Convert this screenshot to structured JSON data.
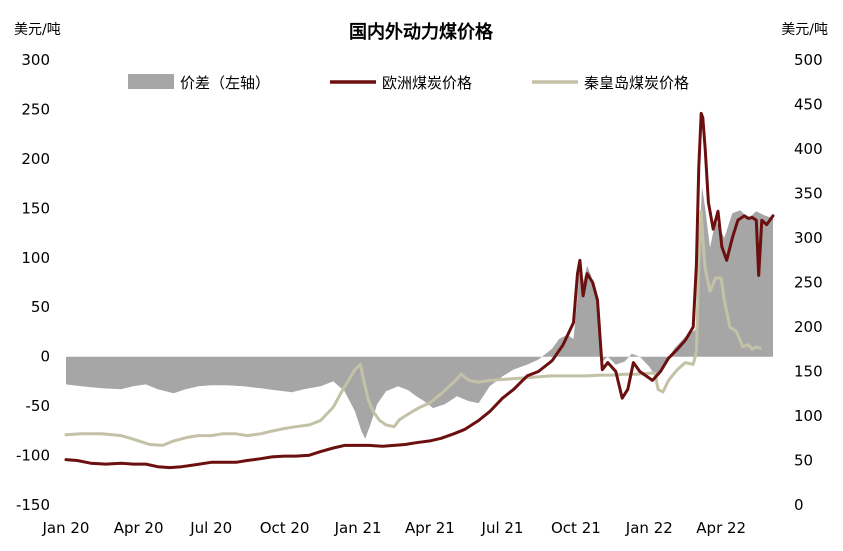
{
  "chart_data": {
    "type": "line",
    "title": "国内外动力煤价格",
    "left_unit": "美元/吨",
    "right_unit": "美元/吨",
    "left_axis": {
      "min": -150,
      "max": 300,
      "ticks": [
        300,
        250,
        200,
        150,
        100,
        50,
        0,
        -50,
        -100,
        -150
      ]
    },
    "right_axis": {
      "min": 0,
      "max": 500,
      "ticks": [
        500,
        450,
        400,
        350,
        300,
        250,
        200,
        150,
        100,
        50,
        0
      ]
    },
    "x_axis": {
      "start": "2020-01-01",
      "end": "2022-06-15",
      "ticks": [
        {
          "date": "2020-01-01",
          "label": "Jan 20"
        },
        {
          "date": "2020-04-01",
          "label": "Apr 20"
        },
        {
          "date": "2020-07-01",
          "label": "Jul 20"
        },
        {
          "date": "2020-10-01",
          "label": "Oct 20"
        },
        {
          "date": "2021-01-01",
          "label": "Jan 21"
        },
        {
          "date": "2021-04-01",
          "label": "Apr 21"
        },
        {
          "date": "2021-07-01",
          "label": "Jul 21"
        },
        {
          "date": "2021-10-01",
          "label": "Oct 21"
        },
        {
          "date": "2022-01-01",
          "label": "Jan 22"
        },
        {
          "date": "2022-04-01",
          "label": "Apr 22"
        }
      ]
    },
    "legend": {
      "placement": "top",
      "items": [
        {
          "label": "价差（左轴）",
          "kind": "area",
          "color": "#a6a6a6"
        },
        {
          "label": "欧洲煤炭价格",
          "kind": "line",
          "color": "#6b0f0f"
        },
        {
          "label": "秦皇岛煤炭价格",
          "kind": "line",
          "color": "#c3c1a6"
        }
      ]
    },
    "series": [
      {
        "name": "价差（左轴）",
        "axis": "left",
        "kind": "area",
        "color": "#a6a6a6",
        "points": [
          [
            "2020-01-01",
            -28
          ],
          [
            "2020-01-20",
            -30
          ],
          [
            "2020-02-15",
            -32
          ],
          [
            "2020-03-10",
            -33
          ],
          [
            "2020-03-25",
            -30
          ],
          [
            "2020-04-10",
            -28
          ],
          [
            "2020-04-25",
            -33
          ],
          [
            "2020-05-15",
            -37
          ],
          [
            "2020-05-30",
            -33
          ],
          [
            "2020-06-15",
            -30
          ],
          [
            "2020-07-01",
            -29
          ],
          [
            "2020-07-20",
            -29
          ],
          [
            "2020-08-10",
            -30
          ],
          [
            "2020-09-01",
            -32
          ],
          [
            "2020-09-20",
            -34
          ],
          [
            "2020-10-10",
            -36
          ],
          [
            "2020-10-25",
            -33
          ],
          [
            "2020-11-15",
            -30
          ],
          [
            "2020-12-01",
            -25
          ],
          [
            "2020-12-15",
            -35
          ],
          [
            "2020-12-28",
            -55
          ],
          [
            "2021-01-05",
            -75
          ],
          [
            "2021-01-10",
            -83
          ],
          [
            "2021-01-16",
            -70
          ],
          [
            "2021-01-25",
            -48
          ],
          [
            "2021-02-05",
            -35
          ],
          [
            "2021-02-20",
            -30
          ],
          [
            "2021-03-05",
            -34
          ],
          [
            "2021-03-15",
            -40
          ],
          [
            "2021-03-25",
            -45
          ],
          [
            "2021-04-05",
            -52
          ],
          [
            "2021-04-20",
            -48
          ],
          [
            "2021-05-05",
            -40
          ],
          [
            "2021-05-20",
            -45
          ],
          [
            "2021-06-01",
            -47
          ],
          [
            "2021-06-15",
            -30
          ],
          [
            "2021-07-01",
            -20
          ],
          [
            "2021-07-15",
            -13
          ],
          [
            "2021-08-01",
            -8
          ],
          [
            "2021-08-15",
            -3
          ],
          [
            "2021-09-01",
            8
          ],
          [
            "2021-09-10",
            18
          ],
          [
            "2021-09-20",
            22
          ],
          [
            "2021-09-28",
            18
          ],
          [
            "2021-10-03",
            60
          ],
          [
            "2021-10-06",
            97
          ],
          [
            "2021-10-10",
            75
          ],
          [
            "2021-10-15",
            92
          ],
          [
            "2021-10-20",
            82
          ],
          [
            "2021-10-28",
            50
          ],
          [
            "2021-11-03",
            -5
          ],
          [
            "2021-11-10",
            0
          ],
          [
            "2021-11-20",
            -8
          ],
          [
            "2021-12-01",
            -5
          ],
          [
            "2021-12-10",
            3
          ],
          [
            "2021-12-20",
            0
          ],
          [
            "2022-01-01",
            -10
          ],
          [
            "2022-01-10",
            -22
          ],
          [
            "2022-01-20",
            -8
          ],
          [
            "2022-02-01",
            8
          ],
          [
            "2022-02-15",
            20
          ],
          [
            "2022-03-01",
            28
          ],
          [
            "2022-03-05",
            120
          ],
          [
            "2022-03-08",
            172
          ],
          [
            "2022-03-12",
            150
          ],
          [
            "2022-03-18",
            110
          ],
          [
            "2022-03-25",
            138
          ],
          [
            "2022-04-05",
            120
          ],
          [
            "2022-04-15",
            145
          ],
          [
            "2022-04-25",
            148
          ],
          [
            "2022-05-05",
            140
          ],
          [
            "2022-05-15",
            147
          ],
          [
            "2022-05-25",
            143
          ],
          [
            "2022-06-05",
            140
          ]
        ]
      },
      {
        "name": "欧洲煤炭价格",
        "axis": "right",
        "kind": "line",
        "color": "#6b0f0f",
        "points": [
          [
            "2020-01-01",
            51
          ],
          [
            "2020-01-15",
            50
          ],
          [
            "2020-02-01",
            47
          ],
          [
            "2020-02-20",
            46
          ],
          [
            "2020-03-10",
            47
          ],
          [
            "2020-03-25",
            46
          ],
          [
            "2020-04-10",
            46
          ],
          [
            "2020-04-25",
            43
          ],
          [
            "2020-05-10",
            42
          ],
          [
            "2020-05-25",
            43
          ],
          [
            "2020-06-10",
            45
          ],
          [
            "2020-07-01",
            48
          ],
          [
            "2020-07-15",
            48
          ],
          [
            "2020-08-01",
            48
          ],
          [
            "2020-08-15",
            50
          ],
          [
            "2020-09-01",
            52
          ],
          [
            "2020-09-15",
            54
          ],
          [
            "2020-10-01",
            55
          ],
          [
            "2020-10-15",
            55
          ],
          [
            "2020-11-01",
            56
          ],
          [
            "2020-11-15",
            60
          ],
          [
            "2020-12-01",
            64
          ],
          [
            "2020-12-15",
            67
          ],
          [
            "2021-01-01",
            67
          ],
          [
            "2021-01-15",
            67
          ],
          [
            "2021-02-01",
            66
          ],
          [
            "2021-02-15",
            67
          ],
          [
            "2021-03-01",
            68
          ],
          [
            "2021-03-15",
            70
          ],
          [
            "2021-04-01",
            72
          ],
          [
            "2021-04-15",
            75
          ],
          [
            "2021-05-01",
            80
          ],
          [
            "2021-05-15",
            85
          ],
          [
            "2021-06-01",
            95
          ],
          [
            "2021-06-15",
            105
          ],
          [
            "2021-07-01",
            120
          ],
          [
            "2021-07-15",
            130
          ],
          [
            "2021-08-01",
            145
          ],
          [
            "2021-08-15",
            150
          ],
          [
            "2021-09-01",
            162
          ],
          [
            "2021-09-15",
            180
          ],
          [
            "2021-09-28",
            205
          ],
          [
            "2021-10-03",
            260
          ],
          [
            "2021-10-06",
            275
          ],
          [
            "2021-10-10",
            235
          ],
          [
            "2021-10-15",
            260
          ],
          [
            "2021-10-22",
            250
          ],
          [
            "2021-10-28",
            230
          ],
          [
            "2021-11-03",
            152
          ],
          [
            "2021-11-10",
            160
          ],
          [
            "2021-11-20",
            150
          ],
          [
            "2021-11-28",
            120
          ],
          [
            "2021-12-05",
            130
          ],
          [
            "2021-12-12",
            160
          ],
          [
            "2021-12-20",
            150
          ],
          [
            "2021-12-28",
            145
          ],
          [
            "2022-01-05",
            140
          ],
          [
            "2022-01-15",
            150
          ],
          [
            "2022-01-25",
            165
          ],
          [
            "2022-02-05",
            175
          ],
          [
            "2022-02-15",
            185
          ],
          [
            "2022-02-25",
            200
          ],
          [
            "2022-03-01",
            270
          ],
          [
            "2022-03-04",
            380
          ],
          [
            "2022-03-07",
            440
          ],
          [
            "2022-03-09",
            435
          ],
          [
            "2022-03-12",
            400
          ],
          [
            "2022-03-16",
            340
          ],
          [
            "2022-03-22",
            310
          ],
          [
            "2022-03-28",
            330
          ],
          [
            "2022-04-02",
            290
          ],
          [
            "2022-04-08",
            275
          ],
          [
            "2022-04-15",
            300
          ],
          [
            "2022-04-22",
            320
          ],
          [
            "2022-04-30",
            325
          ],
          [
            "2022-05-05",
            322
          ],
          [
            "2022-05-10",
            323
          ],
          [
            "2022-05-15",
            320
          ],
          [
            "2022-05-18",
            258
          ],
          [
            "2022-05-22",
            320
          ],
          [
            "2022-05-28",
            315
          ],
          [
            "2022-06-05",
            325
          ]
        ]
      },
      {
        "name": "秦皇岛煤炭价格",
        "axis": "right",
        "kind": "line",
        "color": "#c3c1a6",
        "points": [
          [
            "2020-01-01",
            79
          ],
          [
            "2020-01-20",
            80
          ],
          [
            "2020-02-15",
            80
          ],
          [
            "2020-03-10",
            78
          ],
          [
            "2020-03-25",
            74
          ],
          [
            "2020-04-15",
            68
          ],
          [
            "2020-05-01",
            67
          ],
          [
            "2020-05-15",
            72
          ],
          [
            "2020-06-01",
            76
          ],
          [
            "2020-06-15",
            78
          ],
          [
            "2020-07-01",
            78
          ],
          [
            "2020-07-15",
            80
          ],
          [
            "2020-08-01",
            80
          ],
          [
            "2020-08-15",
            78
          ],
          [
            "2020-09-01",
            80
          ],
          [
            "2020-09-15",
            83
          ],
          [
            "2020-10-01",
            86
          ],
          [
            "2020-10-15",
            88
          ],
          [
            "2020-11-01",
            90
          ],
          [
            "2020-11-15",
            95
          ],
          [
            "2020-12-01",
            110
          ],
          [
            "2020-12-10",
            125
          ],
          [
            "2020-12-20",
            140
          ],
          [
            "2020-12-28",
            152
          ],
          [
            "2021-01-04",
            158
          ],
          [
            "2021-01-08",
            140
          ],
          [
            "2021-01-14",
            118
          ],
          [
            "2021-01-20",
            105
          ],
          [
            "2021-01-28",
            95
          ],
          [
            "2021-02-05",
            90
          ],
          [
            "2021-02-15",
            88
          ],
          [
            "2021-02-22",
            96
          ],
          [
            "2021-03-01",
            100
          ],
          [
            "2021-03-10",
            105
          ],
          [
            "2021-03-20",
            110
          ],
          [
            "2021-04-01",
            115
          ],
          [
            "2021-04-15",
            125
          ],
          [
            "2021-05-01",
            138
          ],
          [
            "2021-05-10",
            147
          ],
          [
            "2021-05-20",
            140
          ],
          [
            "2021-06-01",
            138
          ],
          [
            "2021-06-15",
            140
          ],
          [
            "2021-07-01",
            141
          ],
          [
            "2021-07-15",
            142
          ],
          [
            "2021-08-01",
            143
          ],
          [
            "2021-08-15",
            144
          ],
          [
            "2021-09-01",
            145
          ],
          [
            "2021-09-15",
            145
          ],
          [
            "2021-10-01",
            145
          ],
          [
            "2021-10-15",
            145
          ],
          [
            "2021-11-01",
            146
          ],
          [
            "2021-11-15",
            146
          ],
          [
            "2021-12-01",
            147
          ],
          [
            "2021-12-15",
            147
          ],
          [
            "2022-01-01",
            148
          ],
          [
            "2022-01-08",
            148
          ],
          [
            "2022-01-12",
            130
          ],
          [
            "2022-01-18",
            127
          ],
          [
            "2022-01-25",
            140
          ],
          [
            "2022-02-05",
            152
          ],
          [
            "2022-02-15",
            160
          ],
          [
            "2022-02-25",
            158
          ],
          [
            "2022-03-01",
            172
          ],
          [
            "2022-03-04",
            270
          ],
          [
            "2022-03-07",
            330
          ],
          [
            "2022-03-09",
            300
          ],
          [
            "2022-03-12",
            265
          ],
          [
            "2022-03-18",
            240
          ],
          [
            "2022-03-25",
            255
          ],
          [
            "2022-04-01",
            255
          ],
          [
            "2022-04-05",
            230
          ],
          [
            "2022-04-12",
            200
          ],
          [
            "2022-04-20",
            195
          ],
          [
            "2022-04-28",
            178
          ],
          [
            "2022-05-05",
            180
          ],
          [
            "2022-05-10",
            175
          ],
          [
            "2022-05-15",
            178
          ],
          [
            "2022-05-20",
            176
          ]
        ]
      }
    ]
  }
}
